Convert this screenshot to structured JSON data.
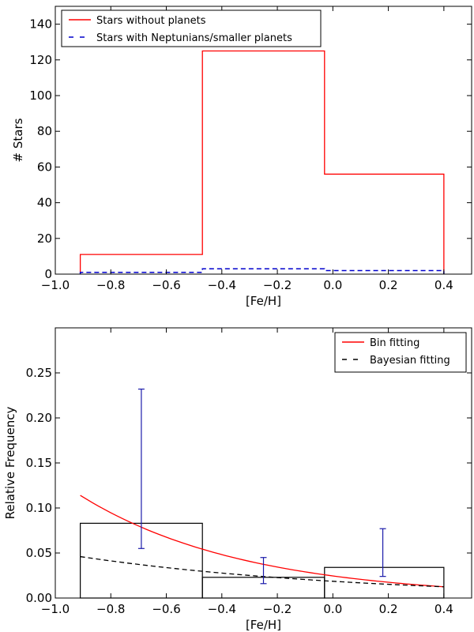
{
  "chart_data": [
    {
      "type": "histogram",
      "title": "",
      "xlabel": "[Fe/H]",
      "ylabel": "# Stars",
      "xlim": [
        -1.0,
        0.5
      ],
      "ylim": [
        0,
        150
      ],
      "xticks": [
        -1.0,
        -0.8,
        -0.6,
        -0.4,
        -0.2,
        0.0,
        0.2,
        0.4
      ],
      "xtick_labels": [
        "−1.0",
        "−0.8",
        "−0.6",
        "−0.4",
        "−0.2",
        "0.0",
        "0.2",
        "0.4"
      ],
      "yticks": [
        0,
        20,
        40,
        60,
        80,
        100,
        120,
        140
      ],
      "ytick_labels": [
        "0",
        "20",
        "40",
        "60",
        "80",
        "100",
        "120",
        "140"
      ],
      "bin_edges": [
        -0.91,
        -0.47,
        -0.03,
        0.4
      ],
      "legend_position": "top-left",
      "series": [
        {
          "name": "Stars without planets",
          "style": "solid",
          "color": "#ff0000",
          "values": [
            11,
            125,
            56
          ]
        },
        {
          "name": "Stars with Neptunians/smaller planets",
          "style": "dashed",
          "color": "#0000cc",
          "values": [
            1,
            3,
            2
          ]
        }
      ]
    },
    {
      "type": "bar",
      "title": "",
      "xlabel": "[Fe/H]",
      "ylabel": "Relative Frequency",
      "xlim": [
        -1.0,
        0.5
      ],
      "ylim": [
        0,
        0.3
      ],
      "xticks": [
        -1.0,
        -0.8,
        -0.6,
        -0.4,
        -0.2,
        0.0,
        0.2,
        0.4
      ],
      "xtick_labels": [
        "−1.0",
        "−0.8",
        "−0.6",
        "−0.4",
        "−0.2",
        "0.0",
        "0.2",
        "0.4"
      ],
      "yticks": [
        0.0,
        0.05,
        0.1,
        0.15,
        0.2,
        0.25
      ],
      "ytick_labels": [
        "0.00",
        "0.05",
        "0.10",
        "0.15",
        "0.20",
        "0.25"
      ],
      "bin_edges": [
        -0.91,
        -0.47,
        -0.03,
        0.4
      ],
      "bars": [
        0.083,
        0.023,
        0.034
      ],
      "errorbars": [
        {
          "x": -0.69,
          "low": 0.055,
          "high": 0.232
        },
        {
          "x": -0.25,
          "low": 0.016,
          "high": 0.045
        },
        {
          "x": 0.18,
          "low": 0.024,
          "high": 0.077
        }
      ],
      "legend_position": "top-right",
      "series": [
        {
          "name": "Bin fitting",
          "style": "solid",
          "color": "#ff0000",
          "model": "exponential",
          "x_range": [
            -0.91,
            0.4
          ],
          "y_at_start": 0.114,
          "y_at_end": 0.0125
        },
        {
          "name": "Bayesian fitting",
          "style": "dashed",
          "color": "#000000",
          "model": "exponential",
          "x_range": [
            -0.91,
            0.4
          ],
          "y_at_start": 0.046,
          "y_at_end": 0.0125
        }
      ]
    }
  ]
}
